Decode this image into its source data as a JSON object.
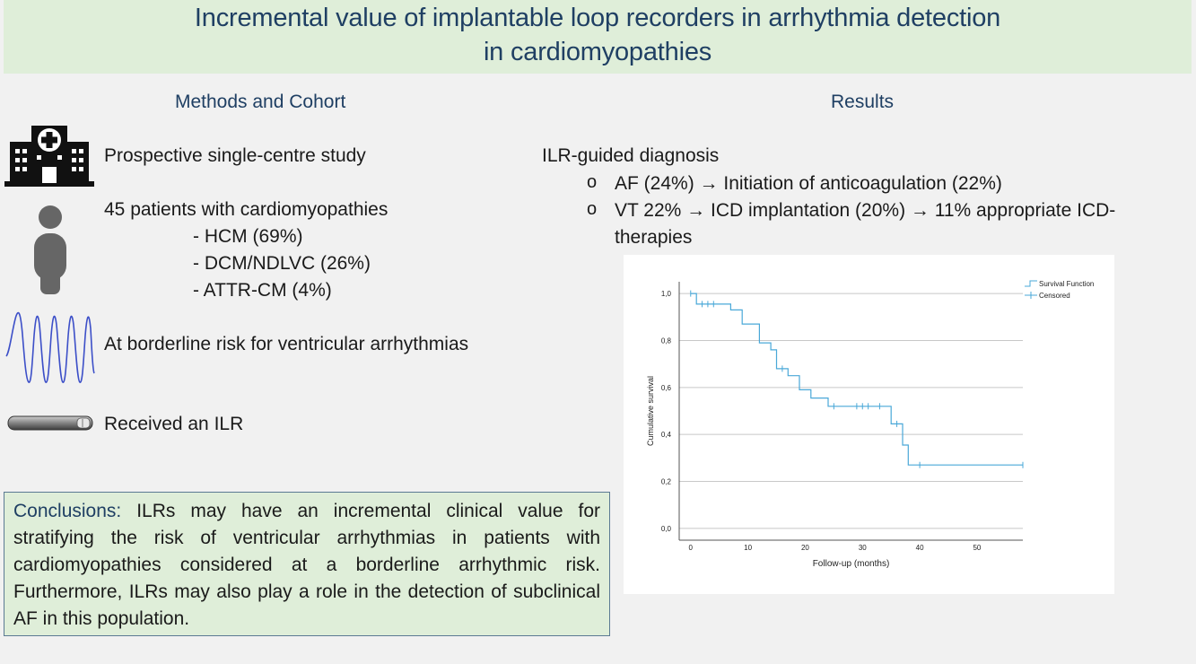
{
  "title": {
    "line1": "Incremental value of implantable loop recorders in arrhythmia detection",
    "line2": "in cardiomyopathies"
  },
  "methods": {
    "heading": "Methods and Cohort",
    "study": "Prospective single-centre study",
    "patients": "45 patients with cardiomyopathies",
    "subgroups": [
      "- HCM (69%)",
      "- DCM/NDLVC (26%)",
      "- ATTR-CM (4%)"
    ],
    "risk": "At borderline risk for ventricular arrhythmias",
    "ilr": "Received an ILR",
    "icons": [
      "hospital-icon",
      "person-icon",
      "ecg-waveform-icon",
      "loop-recorder-icon"
    ]
  },
  "results": {
    "heading": "Results",
    "diagnosis_title": "ILR-guided diagnosis",
    "bullet_symbol": "o",
    "items": [
      "AF (24%) → Initiation of anticoagulation (22%)",
      "VT 22% → ICD implantation (20%) → 11% appropriate ICD-",
      "therapies"
    ]
  },
  "conclusions": {
    "label": "Conclusions:",
    "text": "ILRs may have an incremental clinical value for stratifying the risk of ventricular arrhythmias in patients with cardiomyopathies considered at a borderline arrhythmic risk. Furthermore, ILRs may also play a role in the detection of subclinical AF in this population."
  },
  "colors": {
    "accent": "#1f3f63",
    "panel_green": "#dfeed9",
    "line": "#4aa8d8"
  },
  "chart_data": {
    "type": "line",
    "title": "",
    "xlabel": "Follow-up (months)",
    "ylabel": "Cumulative survival",
    "xlim": [
      -2,
      58
    ],
    "ylim": [
      -0.05,
      1.05
    ],
    "x_ticks": [
      "0",
      "10",
      "20",
      "30",
      "40",
      "50"
    ],
    "y_ticks": [
      "0,0",
      "0,2",
      "0,4",
      "0,6",
      "0,8",
      "1,0"
    ],
    "grid": "horizontal",
    "legend": {
      "position": "top-right",
      "entries": [
        "Survival Function",
        "Censored"
      ]
    },
    "series": [
      {
        "name": "Survival Function",
        "step_points": [
          [
            0,
            1.0
          ],
          [
            1,
            1.0
          ],
          [
            1,
            0.955
          ],
          [
            7,
            0.955
          ],
          [
            7,
            0.93
          ],
          [
            9,
            0.93
          ],
          [
            9,
            0.87
          ],
          [
            12,
            0.87
          ],
          [
            12,
            0.79
          ],
          [
            14,
            0.79
          ],
          [
            14,
            0.76
          ],
          [
            15,
            0.76
          ],
          [
            15,
            0.68
          ],
          [
            17,
            0.68
          ],
          [
            17,
            0.65
          ],
          [
            19,
            0.65
          ],
          [
            19,
            0.59
          ],
          [
            21,
            0.59
          ],
          [
            21,
            0.555
          ],
          [
            24,
            0.555
          ],
          [
            24,
            0.52
          ],
          [
            35,
            0.52
          ],
          [
            35,
            0.445
          ],
          [
            37,
            0.445
          ],
          [
            37,
            0.355
          ],
          [
            38,
            0.355
          ],
          [
            38,
            0.27
          ],
          [
            58,
            0.27
          ]
        ]
      },
      {
        "name": "Censored",
        "points": [
          [
            0,
            1.0
          ],
          [
            2,
            0.955
          ],
          [
            3,
            0.955
          ],
          [
            4,
            0.955
          ],
          [
            16,
            0.68
          ],
          [
            25,
            0.52
          ],
          [
            29,
            0.52
          ],
          [
            30,
            0.52
          ],
          [
            31,
            0.52
          ],
          [
            33,
            0.52
          ],
          [
            36,
            0.445
          ],
          [
            40,
            0.27
          ],
          [
            58,
            0.27
          ]
        ]
      }
    ]
  }
}
